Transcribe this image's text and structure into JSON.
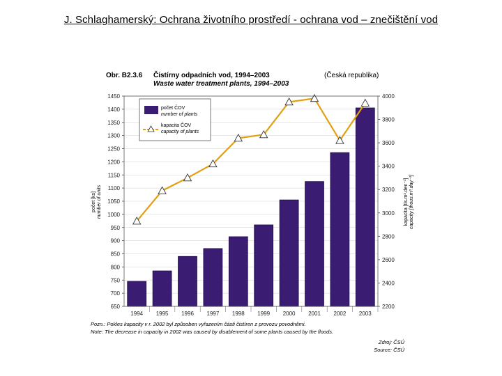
{
  "slide": {
    "title": "J. Schlaghamerský: Ochrana životního prostředí - ochrana vod – znečištění vod"
  },
  "colors": {
    "bar": "#3a1d73",
    "bar_edge": "#1c0c45",
    "line": "#e0a010",
    "grid": "#cfcfcf"
  },
  "chart_data": {
    "type": "bar",
    "figure_label": "Obr. B2.3.6",
    "title": "Čistírny odpadních vod, 1994–2003",
    "subtitle": "Waste water treatment plants, 1994–2003",
    "region_note": "(Česká republika)",
    "categories": [
      "1994",
      "1995",
      "1996",
      "1997",
      "1998",
      "1999",
      "2000",
      "2001",
      "2002",
      "2003"
    ],
    "series": [
      {
        "name": "počet ČOV / number of plants",
        "kind": "bar",
        "axis": "left",
        "values": [
          745,
          785,
          840,
          870,
          915,
          960,
          1055,
          1125,
          1235,
          1405
        ]
      },
      {
        "name": "kapacita ČOV / capacity of plants",
        "kind": "line",
        "axis": "right",
        "values": [
          2930,
          3190,
          3300,
          3420,
          3640,
          3670,
          3950,
          3980,
          3620,
          3940
        ]
      }
    ],
    "legend": [
      {
        "label": "počet ČOV",
        "label_en": "number of plants"
      },
      {
        "label": "kapacita ČOV",
        "label_en": "capacity of plants"
      }
    ],
    "ylabel_left": "počet [ks]",
    "ylabel_left_en": "number of units",
    "ylabel_right": "kapacita [tis.m³.den⁻¹]",
    "ylabel_right_en": "capacity [thous.m³.day⁻¹]",
    "ylim_left": [
      650,
      1450
    ],
    "ylim_right": [
      2200,
      4000
    ],
    "yticks_left": [
      650,
      700,
      750,
      800,
      850,
      900,
      950,
      1000,
      1050,
      1100,
      1150,
      1200,
      1250,
      1300,
      1350,
      1400,
      1450
    ],
    "yticks_right": [
      2200,
      2400,
      2600,
      2800,
      3000,
      3200,
      3400,
      3600,
      3800,
      4000
    ],
    "note_cs": "Pozn.: Pokles kapacity v r. 2002 byl způsoben vyřazením části čistíren z provozu povodněmi.",
    "note_en": "Note: The decrease in capacity in 2002 was caused by disablement of some plants caused by the floods.",
    "source_cs": "Zdroj: ČSÚ",
    "source_en": "Source: ČSÚ"
  }
}
